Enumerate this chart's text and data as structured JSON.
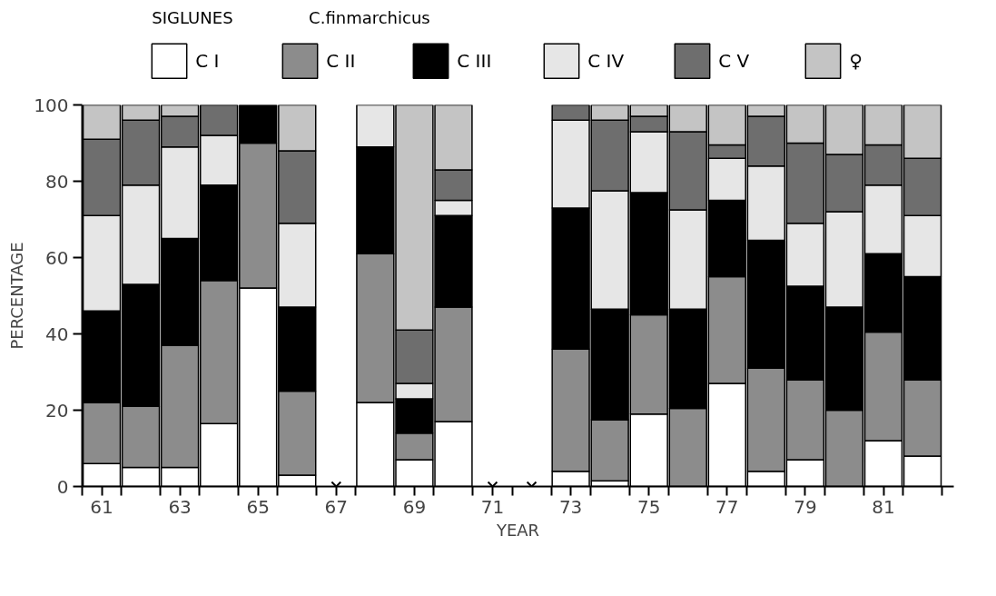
{
  "chart_data": {
    "type": "bar",
    "title": "SIGLUNES",
    "subtitle": "C.finmarchicus",
    "xlabel": "YEAR",
    "ylabel": "PERCENTAGE",
    "stacked": true,
    "x": [
      61,
      62,
      63,
      64,
      65,
      66,
      67,
      68,
      69,
      70,
      71,
      72,
      73,
      74,
      75,
      76,
      77,
      78,
      79,
      80,
      81,
      82
    ],
    "series": [
      {
        "name": "C I",
        "color": "#ffffff",
        "values": [
          6,
          5,
          5,
          16.5,
          52,
          3,
          null,
          22,
          7,
          17,
          null,
          null,
          4,
          1.5,
          19,
          0,
          27,
          4,
          7,
          0,
          12,
          8
        ]
      },
      {
        "name": "C II",
        "color": "#8c8c8c",
        "values": [
          16,
          16,
          32,
          37.5,
          38,
          22,
          null,
          39,
          7,
          30,
          null,
          null,
          32,
          16,
          26,
          20.5,
          28,
          27,
          21,
          20,
          28.5,
          20
        ]
      },
      {
        "name": "C III",
        "color": "#000000",
        "values": [
          24,
          32,
          28,
          25,
          10,
          22,
          null,
          28,
          9,
          24,
          null,
          null,
          37,
          29,
          32,
          26,
          20,
          33.5,
          24.5,
          27,
          20.5,
          27
        ]
      },
      {
        "name": "C IV",
        "color": "#e6e6e6",
        "values": [
          25,
          26,
          24,
          13,
          0,
          22,
          null,
          11,
          4,
          4,
          null,
          null,
          23,
          31,
          16,
          26,
          11,
          19.5,
          16.5,
          25,
          18,
          16
        ]
      },
      {
        "name": "C V",
        "color": "#6e6e6e",
        "values": [
          20,
          17,
          8,
          8,
          0,
          19,
          null,
          0,
          14,
          8,
          null,
          null,
          4,
          18.5,
          4,
          20.5,
          3.5,
          13,
          21,
          15,
          10.5,
          15
        ]
      },
      {
        "name": "♀",
        "color": "#c4c4c4",
        "values": [
          9,
          4,
          3,
          0,
          0,
          12,
          null,
          0,
          59,
          17,
          null,
          null,
          0,
          4,
          3,
          7,
          10.5,
          3,
          10,
          13,
          10.5,
          14
        ]
      },
      {
        "type": "scatter",
        "marker": "cross",
        "color": "#000000",
        "x": [
          67,
          71,
          72
        ],
        "values": [
          0,
          0,
          0
        ]
      }
    ],
    "xlim": [
      60.5,
      82.8
    ],
    "xticks": [
      {
        "value": 60.5,
        "label": null
      },
      {
        "value": 61,
        "label": "61"
      },
      {
        "value": 61.5,
        "label": null
      },
      {
        "value": 62.5,
        "label": null
      },
      {
        "value": 63,
        "label": "63"
      },
      {
        "value": 63.5,
        "label": null
      },
      {
        "value": 64.5,
        "label": null
      },
      {
        "value": 65,
        "label": "65"
      },
      {
        "value": 65.5,
        "label": null
      },
      {
        "value": 66.5,
        "label": null
      },
      {
        "value": 67,
        "label": "67"
      },
      {
        "value": 67.5,
        "label": null
      },
      {
        "value": 68.5,
        "label": null
      },
      {
        "value": 69,
        "label": "69"
      },
      {
        "value": 69.5,
        "label": null
      },
      {
        "value": 70.5,
        "label": null
      },
      {
        "value": 71,
        "label": "71"
      },
      {
        "value": 71.5,
        "label": null
      },
      {
        "value": 72.5,
        "label": null
      },
      {
        "value": 73,
        "label": "73"
      },
      {
        "value": 73.5,
        "label": null
      },
      {
        "value": 74.5,
        "label": null
      },
      {
        "value": 75,
        "label": "75"
      },
      {
        "value": 75.5,
        "label": null
      },
      {
        "value": 76.5,
        "label": null
      },
      {
        "value": 77,
        "label": "77"
      },
      {
        "value": 77.5,
        "label": null
      },
      {
        "value": 78.5,
        "label": null
      },
      {
        "value": 79,
        "label": "79"
      },
      {
        "value": 79.5,
        "label": null
      },
      {
        "value": 80.5,
        "label": null
      },
      {
        "value": 81,
        "label": "81"
      },
      {
        "value": 81.5,
        "label": null
      },
      {
        "value": 82.5,
        "label": null
      }
    ],
    "ylim": [
      0,
      100
    ],
    "yticks": [
      0,
      20,
      40,
      60,
      80,
      100
    ],
    "legend": "top",
    "grid": false
  }
}
